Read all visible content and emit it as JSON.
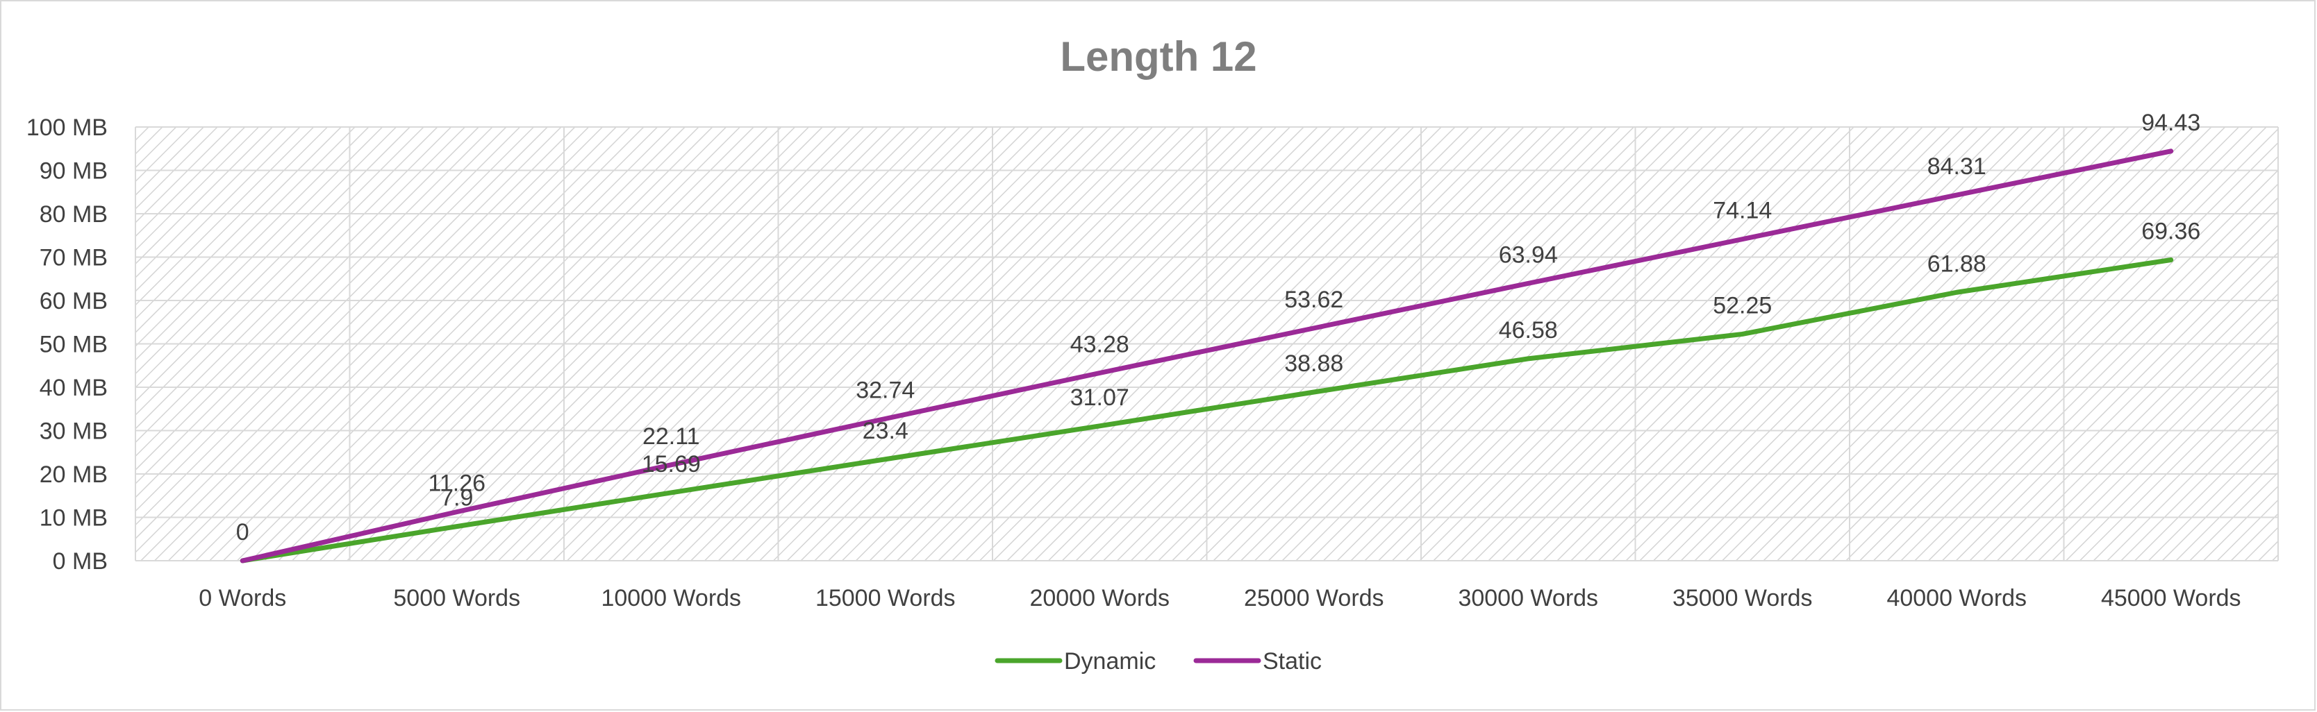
{
  "colors": {
    "dynamic": "#4aa52b",
    "static": "#9b2a97",
    "grid": "#d9d9d9",
    "text": "#404040",
    "title": "#7f7f7f"
  },
  "chart_data": {
    "type": "line",
    "title": "Length 12",
    "xlabel": "",
    "ylabel": "",
    "categories": [
      "0 Words",
      "5000 Words",
      "10000 Words",
      "15000 Words",
      "20000 Words",
      "25000 Words",
      "30000 Words",
      "35000 Words",
      "40000 Words",
      "45000 Words"
    ],
    "ylim": [
      0,
      100
    ],
    "y_ticks": [
      "0 MB",
      "10 MB",
      "20 MB",
      "30 MB",
      "40 MB",
      "50 MB",
      "60 MB",
      "70 MB",
      "80 MB",
      "90 MB",
      "100 MB"
    ],
    "y_tick_values": [
      0,
      10,
      20,
      30,
      40,
      50,
      60,
      70,
      80,
      90,
      100
    ],
    "grid": true,
    "plot_background": "diagonal hatch",
    "legend_position": "bottom",
    "series": [
      {
        "name": "Dynamic",
        "values": [
          0,
          7.9,
          15.69,
          23.4,
          31.07,
          38.88,
          46.58,
          52.25,
          61.88,
          69.36
        ],
        "labels": [
          "",
          "7.9",
          "15.69",
          "23.4",
          "31.07",
          "38.88",
          "46.58",
          "52.25",
          "61.88",
          "69.36"
        ]
      },
      {
        "name": "Static",
        "values": [
          0,
          11.26,
          22.11,
          32.74,
          43.28,
          53.62,
          63.94,
          74.14,
          84.31,
          94.43
        ],
        "labels": [
          "0",
          "11.26",
          "22.11",
          "32.74",
          "43.28",
          "53.62",
          "63.94",
          "74.14",
          "84.31",
          "94.43"
        ]
      }
    ]
  }
}
